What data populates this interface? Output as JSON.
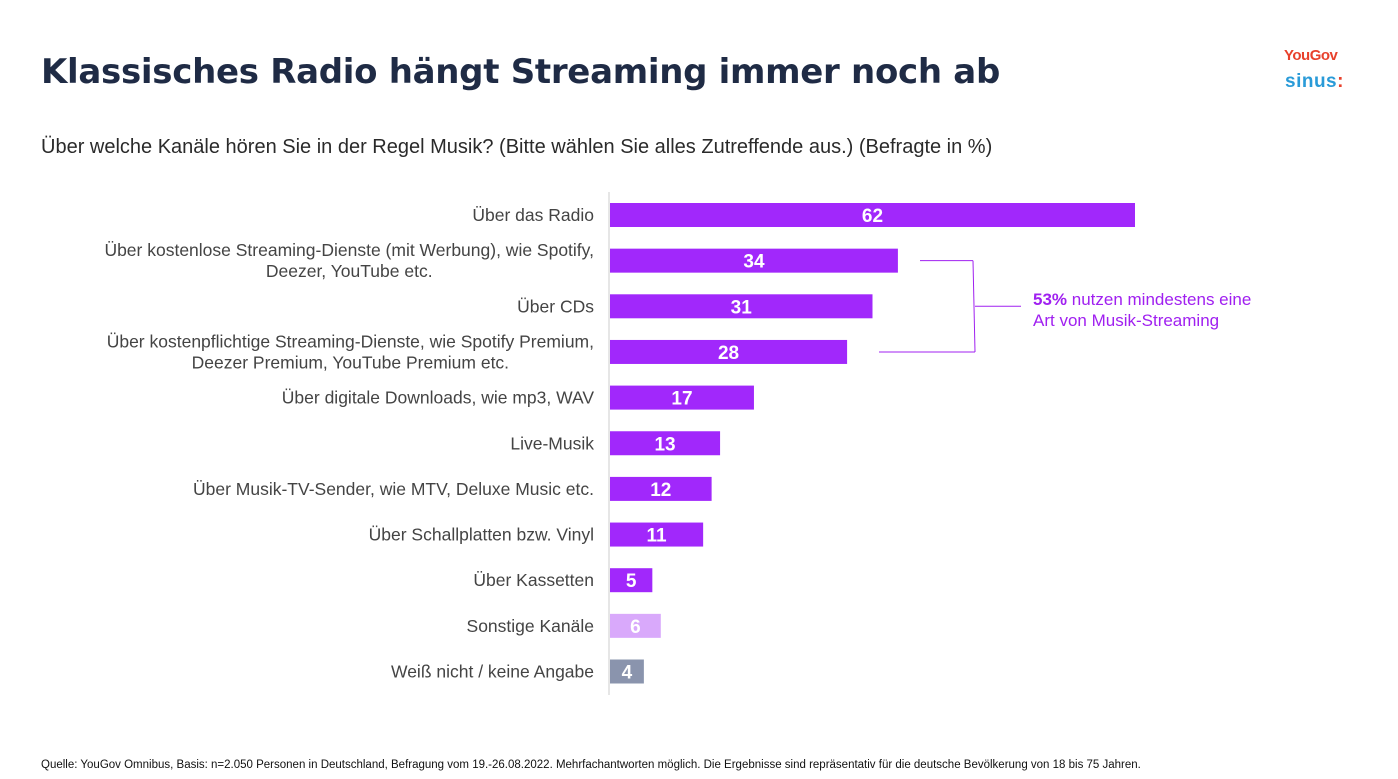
{
  "header": {
    "title": "Klassisches Radio hängt Streaming immer noch ab",
    "subtitle": "Über welche Kanäle hören Sie in der Regel Musik? (Bitte wählen Sie alles Zutreffende aus.) (Befragte in %)"
  },
  "logos": {
    "yougov": "YouGov",
    "sinus": "sinus",
    "sinus_dots": ":"
  },
  "annotation": {
    "highlight": "53%",
    "line1_rest": " nutzen mindestens eine",
    "line2": "Art von Musik-Streaming",
    "color": "#a020f0"
  },
  "footer": {
    "source": "Quelle: YouGov Omnibus, Basis: n=2.050 Personen in Deutschland, Befragung vom 19.-26.08.2022. Mehrfachantworten möglich. Die Ergebnisse sind repräsentativ für die deutsche Bevölkerung von 18 bis 75 Jahren."
  },
  "colors": {
    "primary": "#a128fb",
    "other": "#d9a9fb",
    "unknown": "#8a94ad"
  },
  "chart_data": {
    "type": "bar",
    "orientation": "horizontal",
    "title": "Klassisches Radio hängt Streaming immer noch ab",
    "subtitle": "Über welche Kanäle hören Sie in der Regel Musik? (Bitte wählen Sie alles Zutreffende aus.) (Befragte in %)",
    "xlabel": "",
    "ylabel": "",
    "unit": "%",
    "xlim": [
      0,
      62
    ],
    "grid": false,
    "legend": "none",
    "categories": [
      [
        "Über das Radio"
      ],
      [
        "Über kostenlose Streaming-Dienste (mit Werbung), wie Spotify,",
        "Deezer, YouTube etc."
      ],
      [
        "Über CDs"
      ],
      [
        "Über kostenpflichtige Streaming-Dienste, wie Spotify Premium,",
        "Deezer Premium, YouTube Premium etc."
      ],
      [
        "Über digitale Downloads, wie mp3, WAV"
      ],
      [
        "Live-Musik"
      ],
      [
        "Über Musik-TV-Sender, wie MTV, Deluxe Music etc."
      ],
      [
        "Über Schallplatten bzw. Vinyl"
      ],
      [
        "Über Kassetten"
      ],
      [
        "Sonstige Kanäle"
      ],
      [
        "Weiß nicht / keine Angabe"
      ]
    ],
    "values": [
      62,
      34,
      31,
      28,
      17,
      13,
      12,
      11,
      5,
      6,
      4
    ],
    "bar_color_keys": [
      "primary",
      "primary",
      "primary",
      "primary",
      "primary",
      "primary",
      "primary",
      "primary",
      "primary",
      "other",
      "unknown"
    ],
    "bracket_group": [
      1,
      3
    ],
    "annotation": "53% nutzen mindestens eine Art von Musik-Streaming"
  }
}
